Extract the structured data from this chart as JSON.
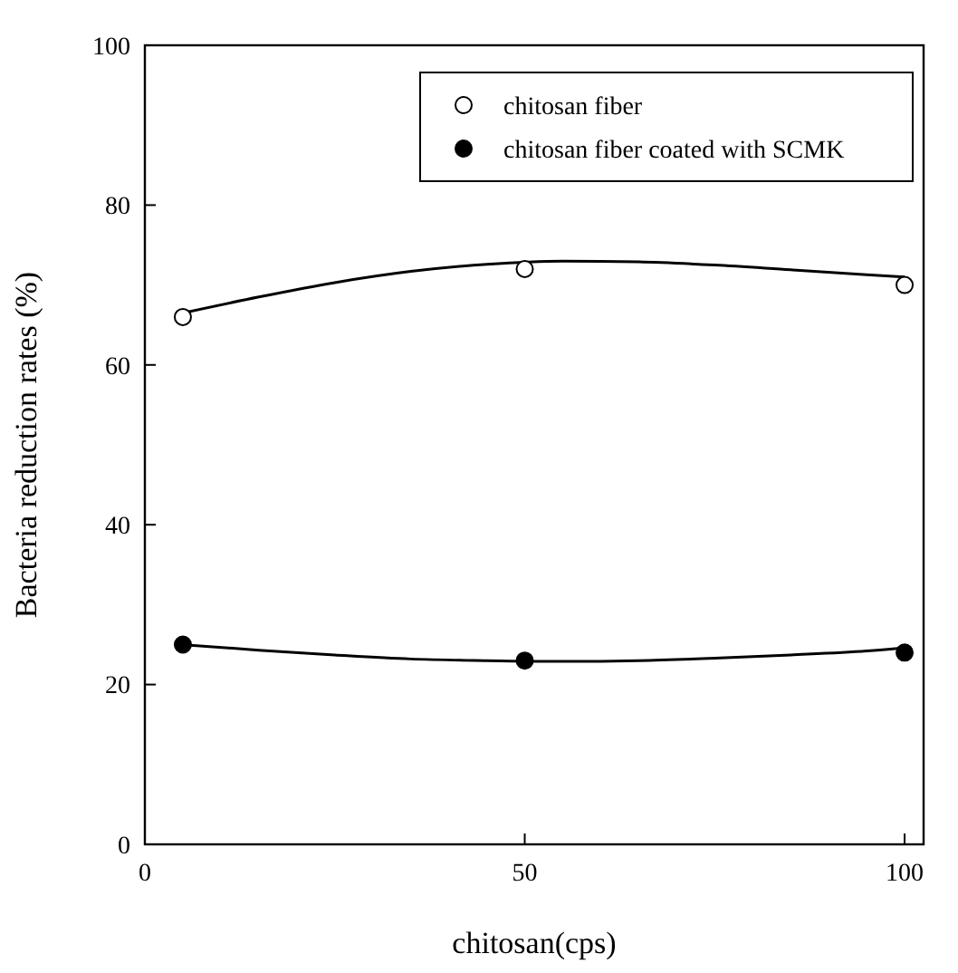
{
  "chart_data": {
    "type": "scatter",
    "xlabel": "chitosan(cps)",
    "ylabel": "Bacteria reduction rates (%)",
    "xlim": [
      0,
      102.5
    ],
    "xticks": [
      0,
      50,
      100
    ],
    "ylim": [
      0,
      100
    ],
    "yticks": [
      0,
      20,
      40,
      60,
      80,
      100
    ],
    "grid": false,
    "legend": "top right",
    "marker": "circle",
    "series": [
      {
        "name": "chitosan fiber",
        "color": "#ffffff",
        "x": [
          5,
          50,
          100
        ],
        "values": [
          66,
          72,
          70
        ]
      },
      {
        "name": "chitosan fiber coated with SCMK",
        "color": "#000000",
        "x": [
          5,
          50,
          100
        ],
        "values": [
          25,
          23,
          24
        ]
      },
      {
        "type": "line",
        "marker": "none",
        "color": "#000000",
        "x": [
          5,
          15,
          25,
          35,
          45,
          55,
          65,
          75,
          85,
          95,
          100
        ],
        "values": [
          66.5,
          68.5,
          70.3,
          71.7,
          72.6,
          73,
          72.9,
          72.5,
          71.9,
          71.3,
          71
        ]
      },
      {
        "type": "line",
        "marker": "none",
        "color": "#000000",
        "x": [
          5,
          15,
          25,
          35,
          45,
          55,
          65,
          75,
          85,
          95,
          100
        ],
        "values": [
          25,
          24.3,
          23.7,
          23.2,
          23,
          22.9,
          23,
          23.3,
          23.7,
          24.2,
          24.6
        ]
      }
    ]
  }
}
